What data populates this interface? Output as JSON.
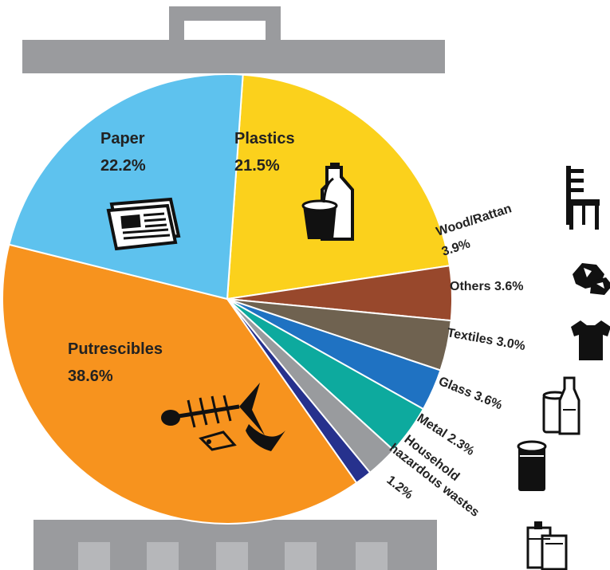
{
  "chart_data": {
    "type": "pie",
    "start_angle_deg": 86,
    "direction": "clockwise",
    "slices": [
      {
        "label": "Plastics",
        "value": 21.5,
        "value_text": "21.5%",
        "color": "#fbd11c",
        "icon": "plastic-bottle-and-bucket-icon"
      },
      {
        "label": "Wood/Rattan",
        "value": 3.9,
        "value_text": "3.9%",
        "color": "#98482c",
        "icon": "chair-icon"
      },
      {
        "label": "Others",
        "value": 3.6,
        "value_text": "3.6%",
        "color": "#6f6250",
        "icon": "rubble-icon"
      },
      {
        "label": "Textiles",
        "value": 3.0,
        "value_text": "3.0%",
        "color": "#1f72c2",
        "icon": "t-shirt-icon"
      },
      {
        "label": "Glass",
        "value": 3.6,
        "value_text": "3.6%",
        "color": "#0daa9e",
        "icon": "glass-jar-and-bottle-icon"
      },
      {
        "label": "Metal",
        "value": 2.3,
        "value_text": "2.3%",
        "color": "#999b9e",
        "icon": "metal-can-icon"
      },
      {
        "label": "Household hazardous wastes",
        "value": 1.2,
        "value_text": "1.2%",
        "color": "#26318d",
        "icon": "chemical-containers-icon"
      },
      {
        "label": "Putrescibles",
        "value": 38.6,
        "value_text": "38.6%",
        "color": "#f7931e",
        "icon": "fish-bones-icon"
      },
      {
        "label": "Paper",
        "value": 22.2,
        "value_text": "22.2%",
        "color": "#5ec2ee",
        "icon": "newspaper-icon"
      }
    ],
    "title": "",
    "legend": "none"
  },
  "decoration": {
    "bin_color": "#9a9b9e",
    "bin_slot_color": "#b6b7ba",
    "bin_lid": "trash-bin-lid",
    "bin_base": "trash-bin-base"
  }
}
